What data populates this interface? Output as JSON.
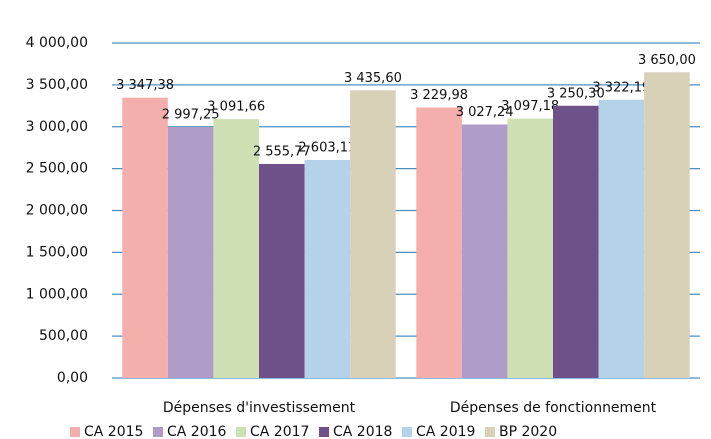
{
  "chart_data": {
    "type": "bar",
    "categories": [
      "Dépenses d'investissement",
      "Dépenses de fonctionnement"
    ],
    "series": [
      {
        "name": "CA 2015",
        "color": "#f4aeab",
        "values": [
          3347.38,
          3229.98
        ],
        "value_labels": [
          "3 347,38",
          "3 229,98"
        ]
      },
      {
        "name": "CA 2016",
        "color": "#b09cc8",
        "values": [
          2997.25,
          3027.24
        ],
        "value_labels": [
          "2 997,25",
          "3 027,24"
        ]
      },
      {
        "name": "CA 2017",
        "color": "#cfe0b5",
        "values": [
          3091.66,
          3097.18
        ],
        "value_labels": [
          "3 091,66",
          "3 097,18"
        ]
      },
      {
        "name": "CA 2018",
        "color": "#6e5189",
        "values": [
          2555.77,
          3250.3
        ],
        "value_labels": [
          "2 555,77",
          "3 250,30"
        ]
      },
      {
        "name": "CA 2019",
        "color": "#b4d3e8",
        "values": [
          2603.11,
          3322.19
        ],
        "value_labels": [
          "2 603,11",
          "3 322,19"
        ]
      },
      {
        "name": "BP 2020",
        "color": "#d9d0b8",
        "values": [
          3435.6,
          3650.0
        ],
        "value_labels": [
          "3 435,60",
          "3 650,00"
        ]
      }
    ],
    "ylim": [
      0,
      4000
    ],
    "yticks": [
      {
        "value": 0,
        "label": "0,00"
      },
      {
        "value": 500,
        "label": "500,00"
      },
      {
        "value": 1000,
        "label": "1 000,00"
      },
      {
        "value": 1500,
        "label": "1 500,00"
      },
      {
        "value": 2000,
        "label": "2 000,00"
      },
      {
        "value": 2500,
        "label": "2 500,00"
      },
      {
        "value": 3000,
        "label": "3 000,00"
      },
      {
        "value": 3500,
        "label": "3 500,00"
      },
      {
        "value": 4000,
        "label": "4 000,00"
      }
    ],
    "grid": true,
    "legend": "bottom"
  }
}
